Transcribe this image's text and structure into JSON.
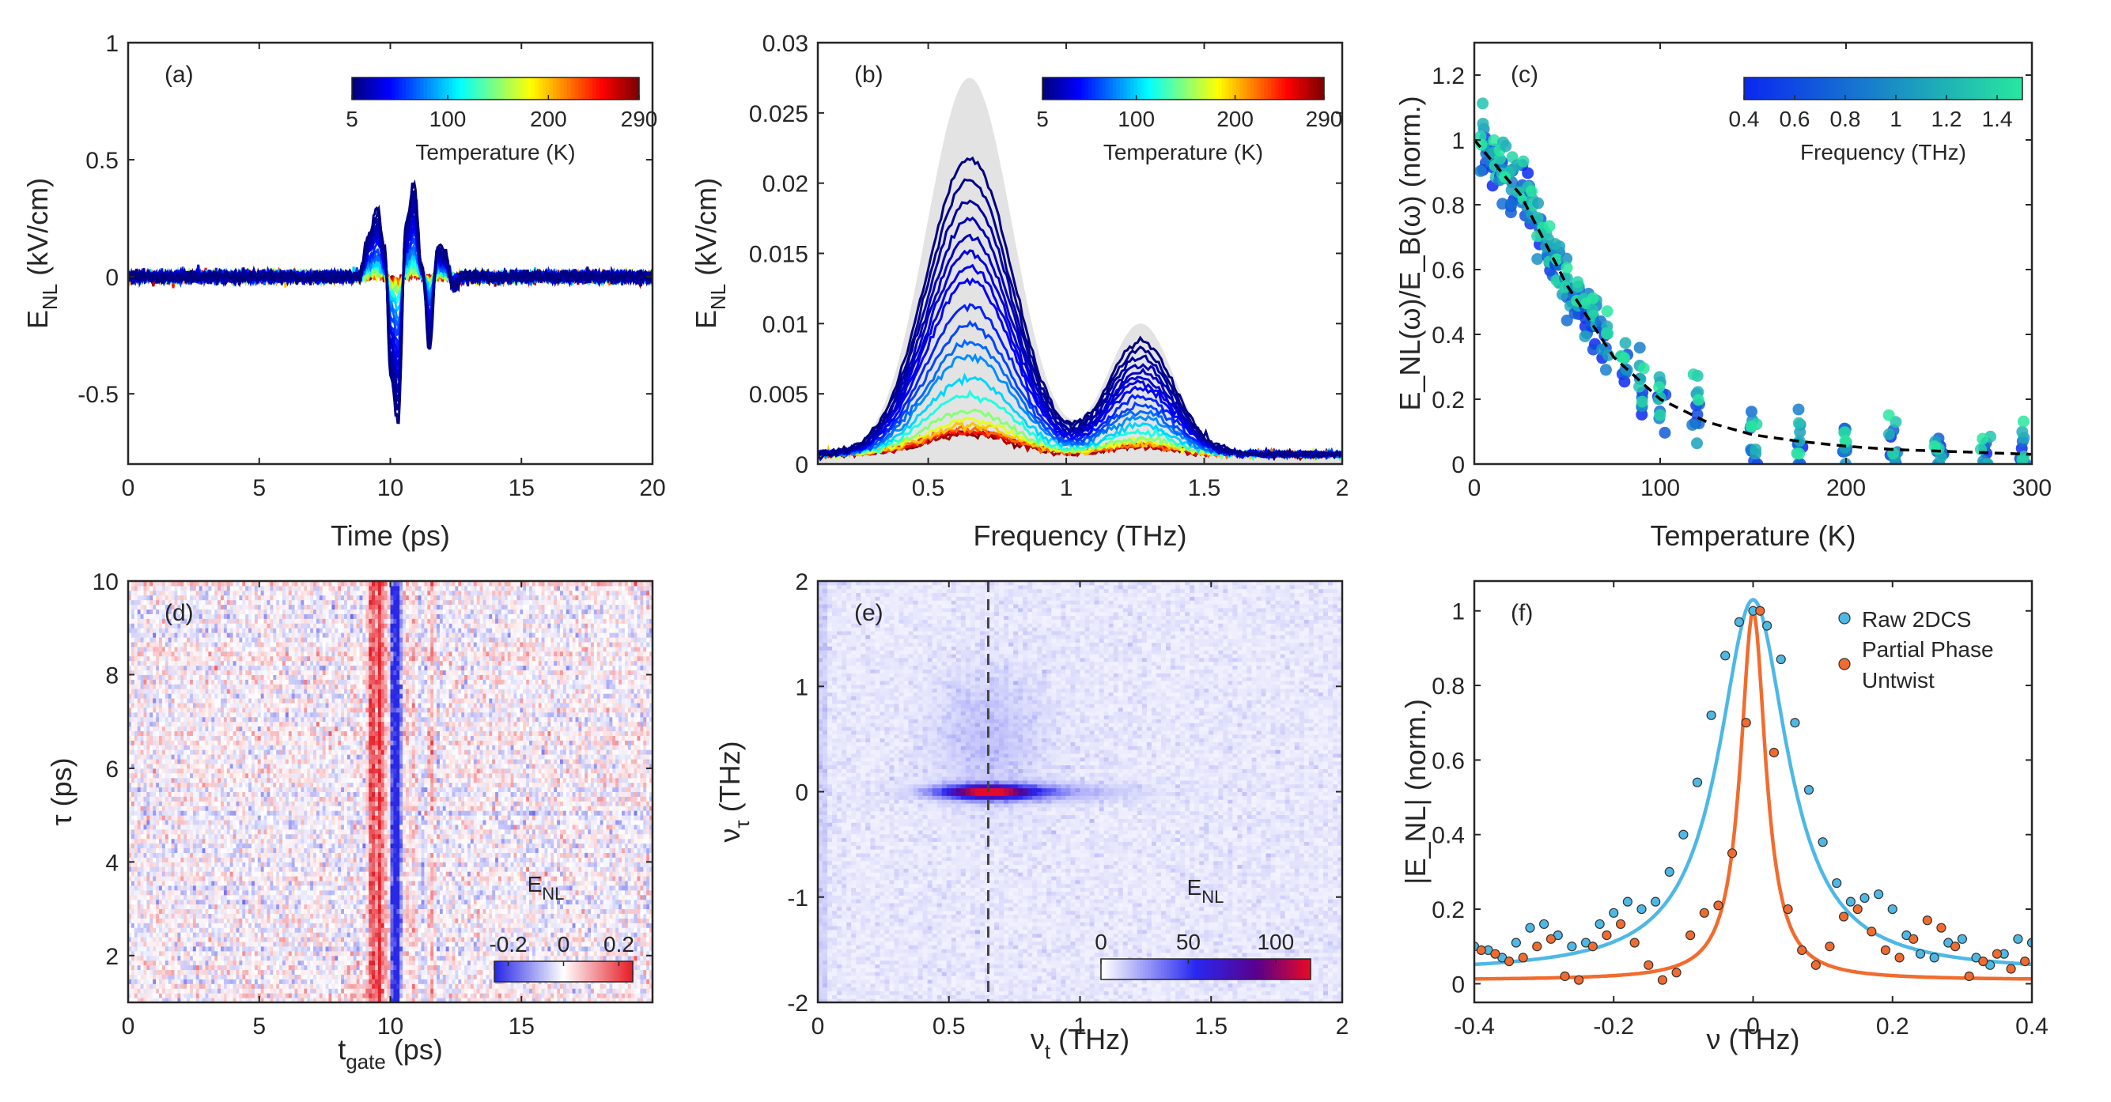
{
  "colors": {
    "axis": "#262626",
    "gray_fill": "#e3e3e3",
    "raw": "#4db8e6",
    "partial": "#f26b2e",
    "fit_dash": "#000000"
  },
  "chart_data": [
    {
      "id": "a",
      "type": "line",
      "label": "(a)",
      "xlabel": "Time (ps)",
      "ylabel_main": "E",
      "ylabel_sub": "NL",
      "ylabel_tail": " (kV/cm)",
      "xlim": [
        0,
        20
      ],
      "ylim": [
        -0.8,
        1
      ],
      "xticks": [
        0,
        5,
        10,
        15,
        20
      ],
      "xtick_labels": [
        "0",
        "5",
        "10",
        "15",
        "20"
      ],
      "yticks": [
        -0.5,
        0,
        0.5,
        1
      ],
      "ytick_labels": [
        "-0.5",
        "0",
        "0.5",
        "1"
      ],
      "colorbar": {
        "label": "Temperature (K)",
        "range": [
          5,
          290
        ],
        "ticks": [
          5,
          100,
          200,
          290
        ],
        "tick_labels": [
          "5",
          "100",
          "200",
          "290"
        ],
        "map": "jet"
      },
      "temperatures": [
        5,
        10,
        15,
        20,
        25,
        30,
        35,
        40,
        50,
        60,
        70,
        80,
        100,
        120,
        150,
        175,
        200,
        225,
        250,
        275,
        290
      ],
      "pulse_5K": {
        "t": [
          0,
          8.8,
          9.2,
          9.5,
          9.8,
          10.0,
          10.3,
          10.6,
          10.9,
          11.2,
          11.5,
          11.8,
          12.1,
          12.4,
          12.8,
          20
        ],
        "E": [
          0,
          0.0,
          0.2,
          0.31,
          0.12,
          -0.45,
          -0.66,
          0.25,
          0.42,
          0.05,
          -0.33,
          0.14,
          0.1,
          -0.05,
          0.0,
          0
        ]
      }
    },
    {
      "id": "b",
      "type": "line",
      "label": "(b)",
      "xlabel": "Frequency (THz)",
      "ylabel_main": "E",
      "ylabel_sub": "NL",
      "ylabel_tail": " (kV/cm)",
      "xlim": [
        0.1,
        2
      ],
      "ylim": [
        0,
        0.03
      ],
      "xticks": [
        0.5,
        1,
        1.5,
        2
      ],
      "xtick_labels": [
        "0.5",
        "1",
        "1.5",
        "2"
      ],
      "yticks": [
        0,
        0.005,
        0.01,
        0.015,
        0.02,
        0.025,
        0.03
      ],
      "ytick_labels": [
        "0",
        "0.005",
        "0.01",
        "0.015",
        "0.02",
        "0.025",
        "0.03"
      ],
      "colorbar": {
        "label": "Temperature (K)",
        "range": [
          5,
          290
        ],
        "ticks": [
          5,
          100,
          200,
          290
        ],
        "tick_labels": [
          "5",
          "100",
          "200",
          "290"
        ],
        "map": "jet"
      },
      "reference_gray": {
        "peak1": [
          0.65,
          0.027
        ],
        "peak2": [
          1.28,
          0.0095
        ]
      },
      "spectrum_5K": {
        "peak1": [
          0.65,
          0.0215
        ],
        "peak2": [
          1.25,
          0.0082
        ]
      },
      "temperatures": [
        5,
        10,
        15,
        20,
        25,
        30,
        35,
        40,
        50,
        60,
        70,
        80,
        100,
        120,
        150,
        175,
        200,
        225,
        250,
        275,
        290
      ]
    },
    {
      "id": "c",
      "type": "scatter",
      "label": "(c)",
      "xlabel": "Temperature (K)",
      "ylabel": "E_NL(ω)/E_B(ω) (norm.)",
      "xlim": [
        0,
        300
      ],
      "ylim": [
        0,
        1.3
      ],
      "xticks": [
        0,
        100,
        200,
        300
      ],
      "xtick_labels": [
        "0",
        "100",
        "200",
        "300"
      ],
      "yticks": [
        0,
        0.2,
        0.4,
        0.6,
        0.8,
        1,
        1.2
      ],
      "ytick_labels": [
        "0",
        "0.2",
        "0.4",
        "0.6",
        "0.8",
        "1",
        "1.2"
      ],
      "colorbar": {
        "label": "Frequency (THz)",
        "range": [
          0.4,
          1.5
        ],
        "ticks": [
          0.4,
          0.6,
          0.8,
          1,
          1.2,
          1.4
        ],
        "tick_labels": [
          "0.4",
          "0.6",
          "0.8",
          "1",
          "1.2",
          "1.4"
        ],
        "map": "winter"
      },
      "temperatures": [
        5,
        10,
        15,
        20,
        25,
        30,
        35,
        40,
        45,
        50,
        55,
        60,
        65,
        70,
        80,
        90,
        100,
        120,
        150,
        175,
        200,
        225,
        250,
        275,
        295
      ],
      "fit_curve": {
        "T": [
          0,
          25,
          50,
          75,
          100,
          125,
          150,
          175,
          200,
          225,
          250,
          275,
          300
        ],
        "y": [
          1.0,
          0.83,
          0.55,
          0.33,
          0.2,
          0.13,
          0.09,
          0.07,
          0.055,
          0.045,
          0.04,
          0.035,
          0.03
        ]
      }
    },
    {
      "id": "d",
      "type": "heatmap",
      "label": "(d)",
      "xlabel_main": "t",
      "xlabel_sub": "gate",
      "xlabel_tail": " (ps)",
      "ylabel": "τ (ps)",
      "xlim": [
        0,
        20
      ],
      "ylim": [
        1,
        10
      ],
      "xticks": [
        0,
        5,
        10,
        15
      ],
      "xtick_labels": [
        "0",
        "5",
        "10",
        "15"
      ],
      "yticks": [
        2,
        4,
        6,
        8,
        10
      ],
      "ytick_labels": [
        "2",
        "4",
        "6",
        "8",
        "10"
      ],
      "colorbar": {
        "title_main": "E",
        "title_sub": "NL",
        "range": [
          -0.25,
          0.25
        ],
        "ticks": [
          -0.2,
          0,
          0.2
        ],
        "tick_labels": [
          "-0.2",
          "0",
          "0.2"
        ],
        "map": "bwr"
      },
      "bands": [
        {
          "t": 9.3,
          "v": 0.22
        },
        {
          "t": 9.6,
          "v": 0.25
        },
        {
          "t": 9.9,
          "v": 0.1
        },
        {
          "t": 10.1,
          "v": -0.25
        },
        {
          "t": 10.3,
          "v": -0.25
        },
        {
          "t": 10.6,
          "v": 0.05
        },
        {
          "t": 10.9,
          "v": 0.05
        },
        {
          "t": 11.2,
          "v": -0.05
        },
        {
          "t": 11.6,
          "v": 0.08
        },
        {
          "t": 11.8,
          "v": -0.04
        }
      ]
    },
    {
      "id": "e",
      "type": "heatmap",
      "label": "(e)",
      "xlabel_main": "ν",
      "xlabel_sub": "t",
      "xlabel_tail": " (THz)",
      "ylabel_main": "ν",
      "ylabel_sub": "τ",
      "ylabel_tail": " (THz)",
      "xlim": [
        0,
        2
      ],
      "ylim": [
        -2,
        2
      ],
      "xticks": [
        0,
        0.5,
        1,
        1.5,
        2
      ],
      "xtick_labels": [
        "0",
        "0.5",
        "1",
        "1.5",
        "2"
      ],
      "yticks": [
        -2,
        -1,
        0,
        1,
        2
      ],
      "ytick_labels": [
        "-2",
        "-1",
        "0",
        "1",
        "2"
      ],
      "dashed_line_x": 0.65,
      "peak": {
        "nu_t": 0.65,
        "nu_tau": 0,
        "value": 110
      },
      "colorbar": {
        "title_main": "E",
        "title_sub": "NL",
        "range": [
          0,
          120
        ],
        "ticks": [
          0,
          50,
          100
        ],
        "tick_labels": [
          "0",
          "50",
          "100"
        ],
        "map": "white-blue-red"
      }
    },
    {
      "id": "f",
      "type": "scatter",
      "label": "(f)",
      "xlabel": "ν (THz)",
      "ylabel": "|E_NL| (norm.)",
      "xlim": [
        -0.4,
        0.4
      ],
      "ylim": [
        -0.05,
        1.08
      ],
      "xticks": [
        -0.4,
        -0.2,
        0,
        0.2,
        0.4
      ],
      "xtick_labels": [
        "-0.4",
        "-0.2",
        "0",
        "0.2",
        "0.4"
      ],
      "yticks": [
        0,
        0.2,
        0.4,
        0.6,
        0.8,
        1
      ],
      "ytick_labels": [
        "0",
        "0.2",
        "0.4",
        "0.6",
        "0.8",
        "1"
      ],
      "legend": {
        "position": "top-right",
        "entries": [
          "Raw 2DCS",
          "Partial Phase",
          "Untwist"
        ]
      },
      "series": [
        {
          "name": "Raw 2DCS",
          "x": [
            -0.4,
            -0.38,
            -0.36,
            -0.34,
            -0.32,
            -0.3,
            -0.28,
            -0.26,
            -0.24,
            -0.22,
            -0.2,
            -0.18,
            -0.16,
            -0.14,
            -0.12,
            -0.1,
            -0.08,
            -0.06,
            -0.04,
            -0.02,
            0,
            0.02,
            0.04,
            0.06,
            0.08,
            0.1,
            0.12,
            0.14,
            0.16,
            0.18,
            0.2,
            0.22,
            0.24,
            0.26,
            0.28,
            0.3,
            0.32,
            0.34,
            0.36,
            0.38,
            0.4
          ],
          "y": [
            0.1,
            0.09,
            0.07,
            0.11,
            0.15,
            0.16,
            0.13,
            0.1,
            0.11,
            0.16,
            0.19,
            0.22,
            0.2,
            0.22,
            0.3,
            0.4,
            0.54,
            0.72,
            0.88,
            0.97,
            1.0,
            0.96,
            0.87,
            0.7,
            0.52,
            0.38,
            0.27,
            0.22,
            0.23,
            0.24,
            0.2,
            0.13,
            0.08,
            0.07,
            0.11,
            0.12,
            0.07,
            0.05,
            0.08,
            0.12,
            0.11
          ],
          "fit_gamma": 0.06,
          "fit_amp": 1.03,
          "fit_offset": 0.03
        },
        {
          "name": "Partial Phase Untwist",
          "x": [
            -0.4,
            -0.38,
            -0.36,
            -0.34,
            -0.32,
            -0.3,
            -0.28,
            -0.26,
            -0.24,
            -0.22,
            -0.2,
            -0.18,
            -0.16,
            -0.14,
            -0.12,
            -0.1,
            -0.08,
            -0.06,
            -0.04,
            -0.02,
            0,
            0.02,
            0.04,
            0.06,
            0.08,
            0.1,
            0.12,
            0.14,
            0.16,
            0.18,
            0.2,
            0.22,
            0.24,
            0.26,
            0.28,
            0.3,
            0.32,
            0.34,
            0.36,
            0.38,
            0.4
          ],
          "y": [
            0.09,
            0.08,
            0.06,
            0.07,
            0.1,
            0.12,
            0.02,
            0.01,
            0.1,
            0.13,
            0.16,
            0.11,
            0.05,
            0.01,
            0.03,
            0.13,
            0.19,
            0.21,
            0.35,
            0.7,
            1.0,
            0.62,
            0.2,
            0.09,
            0.05,
            0.1,
            0.18,
            0.2,
            0.14,
            0.09,
            0.07,
            0.12,
            0.17,
            0.15,
            0.1,
            0.02,
            0.06,
            0.08,
            0.04,
            0.06,
            0.1
          ],
          "fit_gamma": 0.022,
          "fit_amp": 1.0,
          "fit_offset": 0.01
        }
      ]
    }
  ]
}
